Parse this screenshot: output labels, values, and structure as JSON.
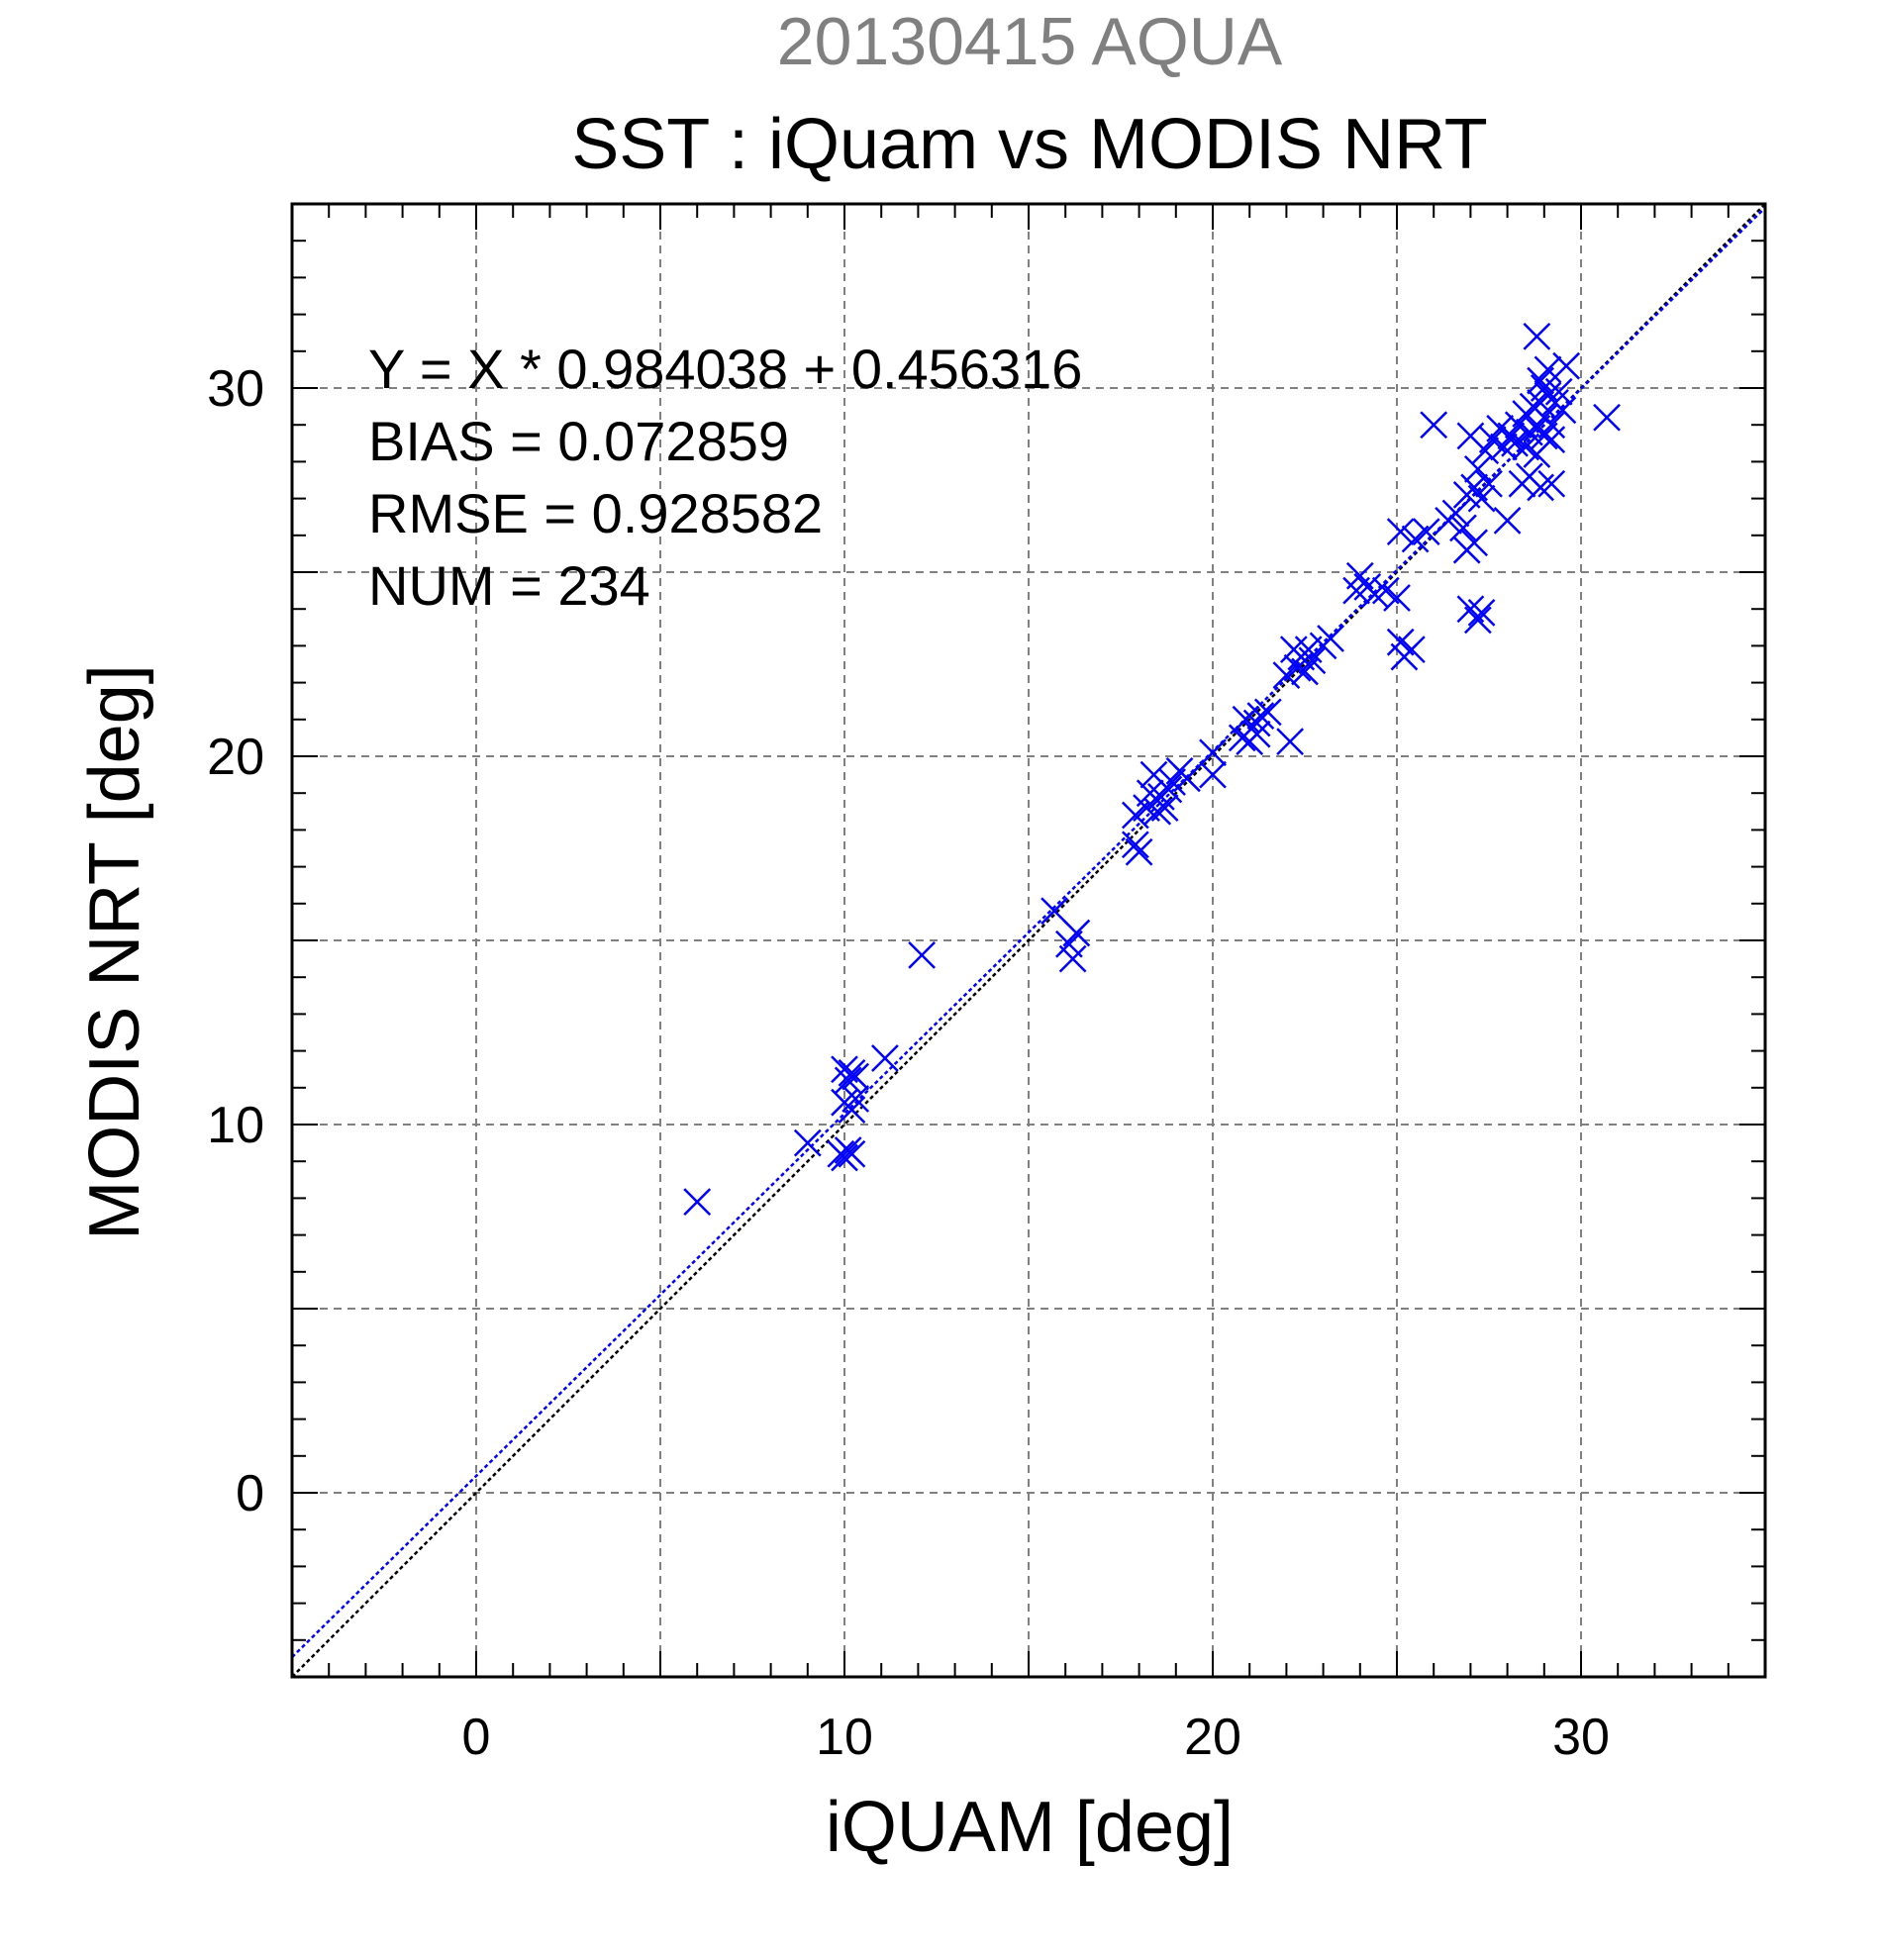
{
  "chart_data": {
    "type": "scatter",
    "supertitle": "20130415 AQUA",
    "title": "SST : iQuam vs MODIS NRT",
    "xlabel": "iQUAM [deg]",
    "ylabel": "MODIS NRT [deg]",
    "xlim": [
      -5,
      35
    ],
    "ylim": [
      -5,
      35
    ],
    "x_ticks": [
      0,
      10,
      20,
      30
    ],
    "y_ticks": [
      0,
      10,
      20,
      30
    ],
    "x_tick_labels": [
      "0",
      "10",
      "20",
      "30"
    ],
    "y_tick_labels": [
      "0",
      "10",
      "20",
      "30"
    ],
    "minor_tick_step": 1,
    "grid_step": 5,
    "grid": true,
    "colors": {
      "points": "#0000ff",
      "fit_line": "#0000ff",
      "identity_line": "#000000",
      "supertitle": "#808080"
    },
    "stats": {
      "equation": "Y = X * 0.984038 + 0.456316",
      "bias": "BIAS = 0.072859",
      "rmse": "RMSE = 0.928582",
      "num": "NUM = 234"
    },
    "fit": {
      "slope": 0.984038,
      "intercept": 0.456316
    },
    "series": [
      {
        "marker": "x",
        "points": [
          [
            6.0,
            7.9
          ],
          [
            9.0,
            9.5
          ],
          [
            9.9,
            9.2
          ],
          [
            10.0,
            9.1
          ],
          [
            10.1,
            9.3
          ],
          [
            10.2,
            9.2
          ],
          [
            10.0,
            10.6
          ],
          [
            10.2,
            10.4
          ],
          [
            10.3,
            10.7
          ],
          [
            10.1,
            11.2
          ],
          [
            10.2,
            11.4
          ],
          [
            10.0,
            11.5
          ],
          [
            10.3,
            11.3
          ],
          [
            11.1,
            11.8
          ],
          [
            12.1,
            14.6
          ],
          [
            15.7,
            15.8
          ],
          [
            16.1,
            14.9
          ],
          [
            16.2,
            14.5
          ],
          [
            16.3,
            15.2
          ],
          [
            17.9,
            17.6
          ],
          [
            18.0,
            17.4
          ],
          [
            17.9,
            18.4
          ],
          [
            18.2,
            18.6
          ],
          [
            18.5,
            18.5
          ],
          [
            18.3,
            19.0
          ],
          [
            18.6,
            18.9
          ],
          [
            18.7,
            18.6
          ],
          [
            18.4,
            19.5
          ],
          [
            18.9,
            19.3
          ],
          [
            19.1,
            19.6
          ],
          [
            18.8,
            19.1
          ],
          [
            19.3,
            19.4
          ],
          [
            20.0,
            19.5
          ],
          [
            20.0,
            20.1
          ],
          [
            20.8,
            20.5
          ],
          [
            21.0,
            20.4
          ],
          [
            21.2,
            20.6
          ],
          [
            20.9,
            21.0
          ],
          [
            21.3,
            21.1
          ],
          [
            21.5,
            21.2
          ],
          [
            21.2,
            20.9
          ],
          [
            22.0,
            22.2
          ],
          [
            22.1,
            20.4
          ],
          [
            22.3,
            22.4
          ],
          [
            22.4,
            22.7
          ],
          [
            22.6,
            22.9
          ],
          [
            22.2,
            22.9
          ],
          [
            22.7,
            22.6
          ],
          [
            23.0,
            23.0
          ],
          [
            23.2,
            23.2
          ],
          [
            22.5,
            22.3
          ],
          [
            23.9,
            24.5
          ],
          [
            24.0,
            24.9
          ],
          [
            24.2,
            24.6
          ],
          [
            24.4,
            24.4
          ],
          [
            24.7,
            24.5
          ],
          [
            25.0,
            24.3
          ],
          [
            25.1,
            23.1
          ],
          [
            25.2,
            22.7
          ],
          [
            25.4,
            22.9
          ],
          [
            25.1,
            26.1
          ],
          [
            25.5,
            25.9
          ],
          [
            25.8,
            26.1
          ],
          [
            26.0,
            29.0
          ],
          [
            26.4,
            26.4
          ],
          [
            26.6,
            26.6
          ],
          [
            26.8,
            26.2
          ],
          [
            26.9,
            25.6
          ],
          [
            27.1,
            25.8
          ],
          [
            27.0,
            24.0
          ],
          [
            27.2,
            23.7
          ],
          [
            27.3,
            23.9
          ],
          [
            26.9,
            27.1
          ],
          [
            27.1,
            27.3
          ],
          [
            27.3,
            27.0
          ],
          [
            27.5,
            27.4
          ],
          [
            27.2,
            27.8
          ],
          [
            27.4,
            28.3
          ],
          [
            27.0,
            28.7
          ],
          [
            27.6,
            28.6
          ],
          [
            27.8,
            28.9
          ],
          [
            27.9,
            28.4
          ],
          [
            28.1,
            28.7
          ],
          [
            28.2,
            28.5
          ],
          [
            28.0,
            26.4
          ],
          [
            28.4,
            27.4
          ],
          [
            28.6,
            27.6
          ],
          [
            28.9,
            27.3
          ],
          [
            29.2,
            27.4
          ],
          [
            28.3,
            29.0
          ],
          [
            28.5,
            29.3
          ],
          [
            28.6,
            28.8
          ],
          [
            28.7,
            29.5
          ],
          [
            28.8,
            28.9
          ],
          [
            28.9,
            29.6
          ],
          [
            29.0,
            29.2
          ],
          [
            29.1,
            29.8
          ],
          [
            29.2,
            29.0
          ],
          [
            29.3,
            29.6
          ],
          [
            29.4,
            29.9
          ],
          [
            29.5,
            29.4
          ],
          [
            28.9,
            30.2
          ],
          [
            29.0,
            30.0
          ],
          [
            29.1,
            30.5
          ],
          [
            29.2,
            28.6
          ],
          [
            28.5,
            28.4
          ],
          [
            28.8,
            28.2
          ],
          [
            29.0,
            28.7
          ],
          [
            28.8,
            31.4
          ],
          [
            29.6,
            30.6
          ],
          [
            30.7,
            29.2
          ]
        ]
      }
    ]
  }
}
